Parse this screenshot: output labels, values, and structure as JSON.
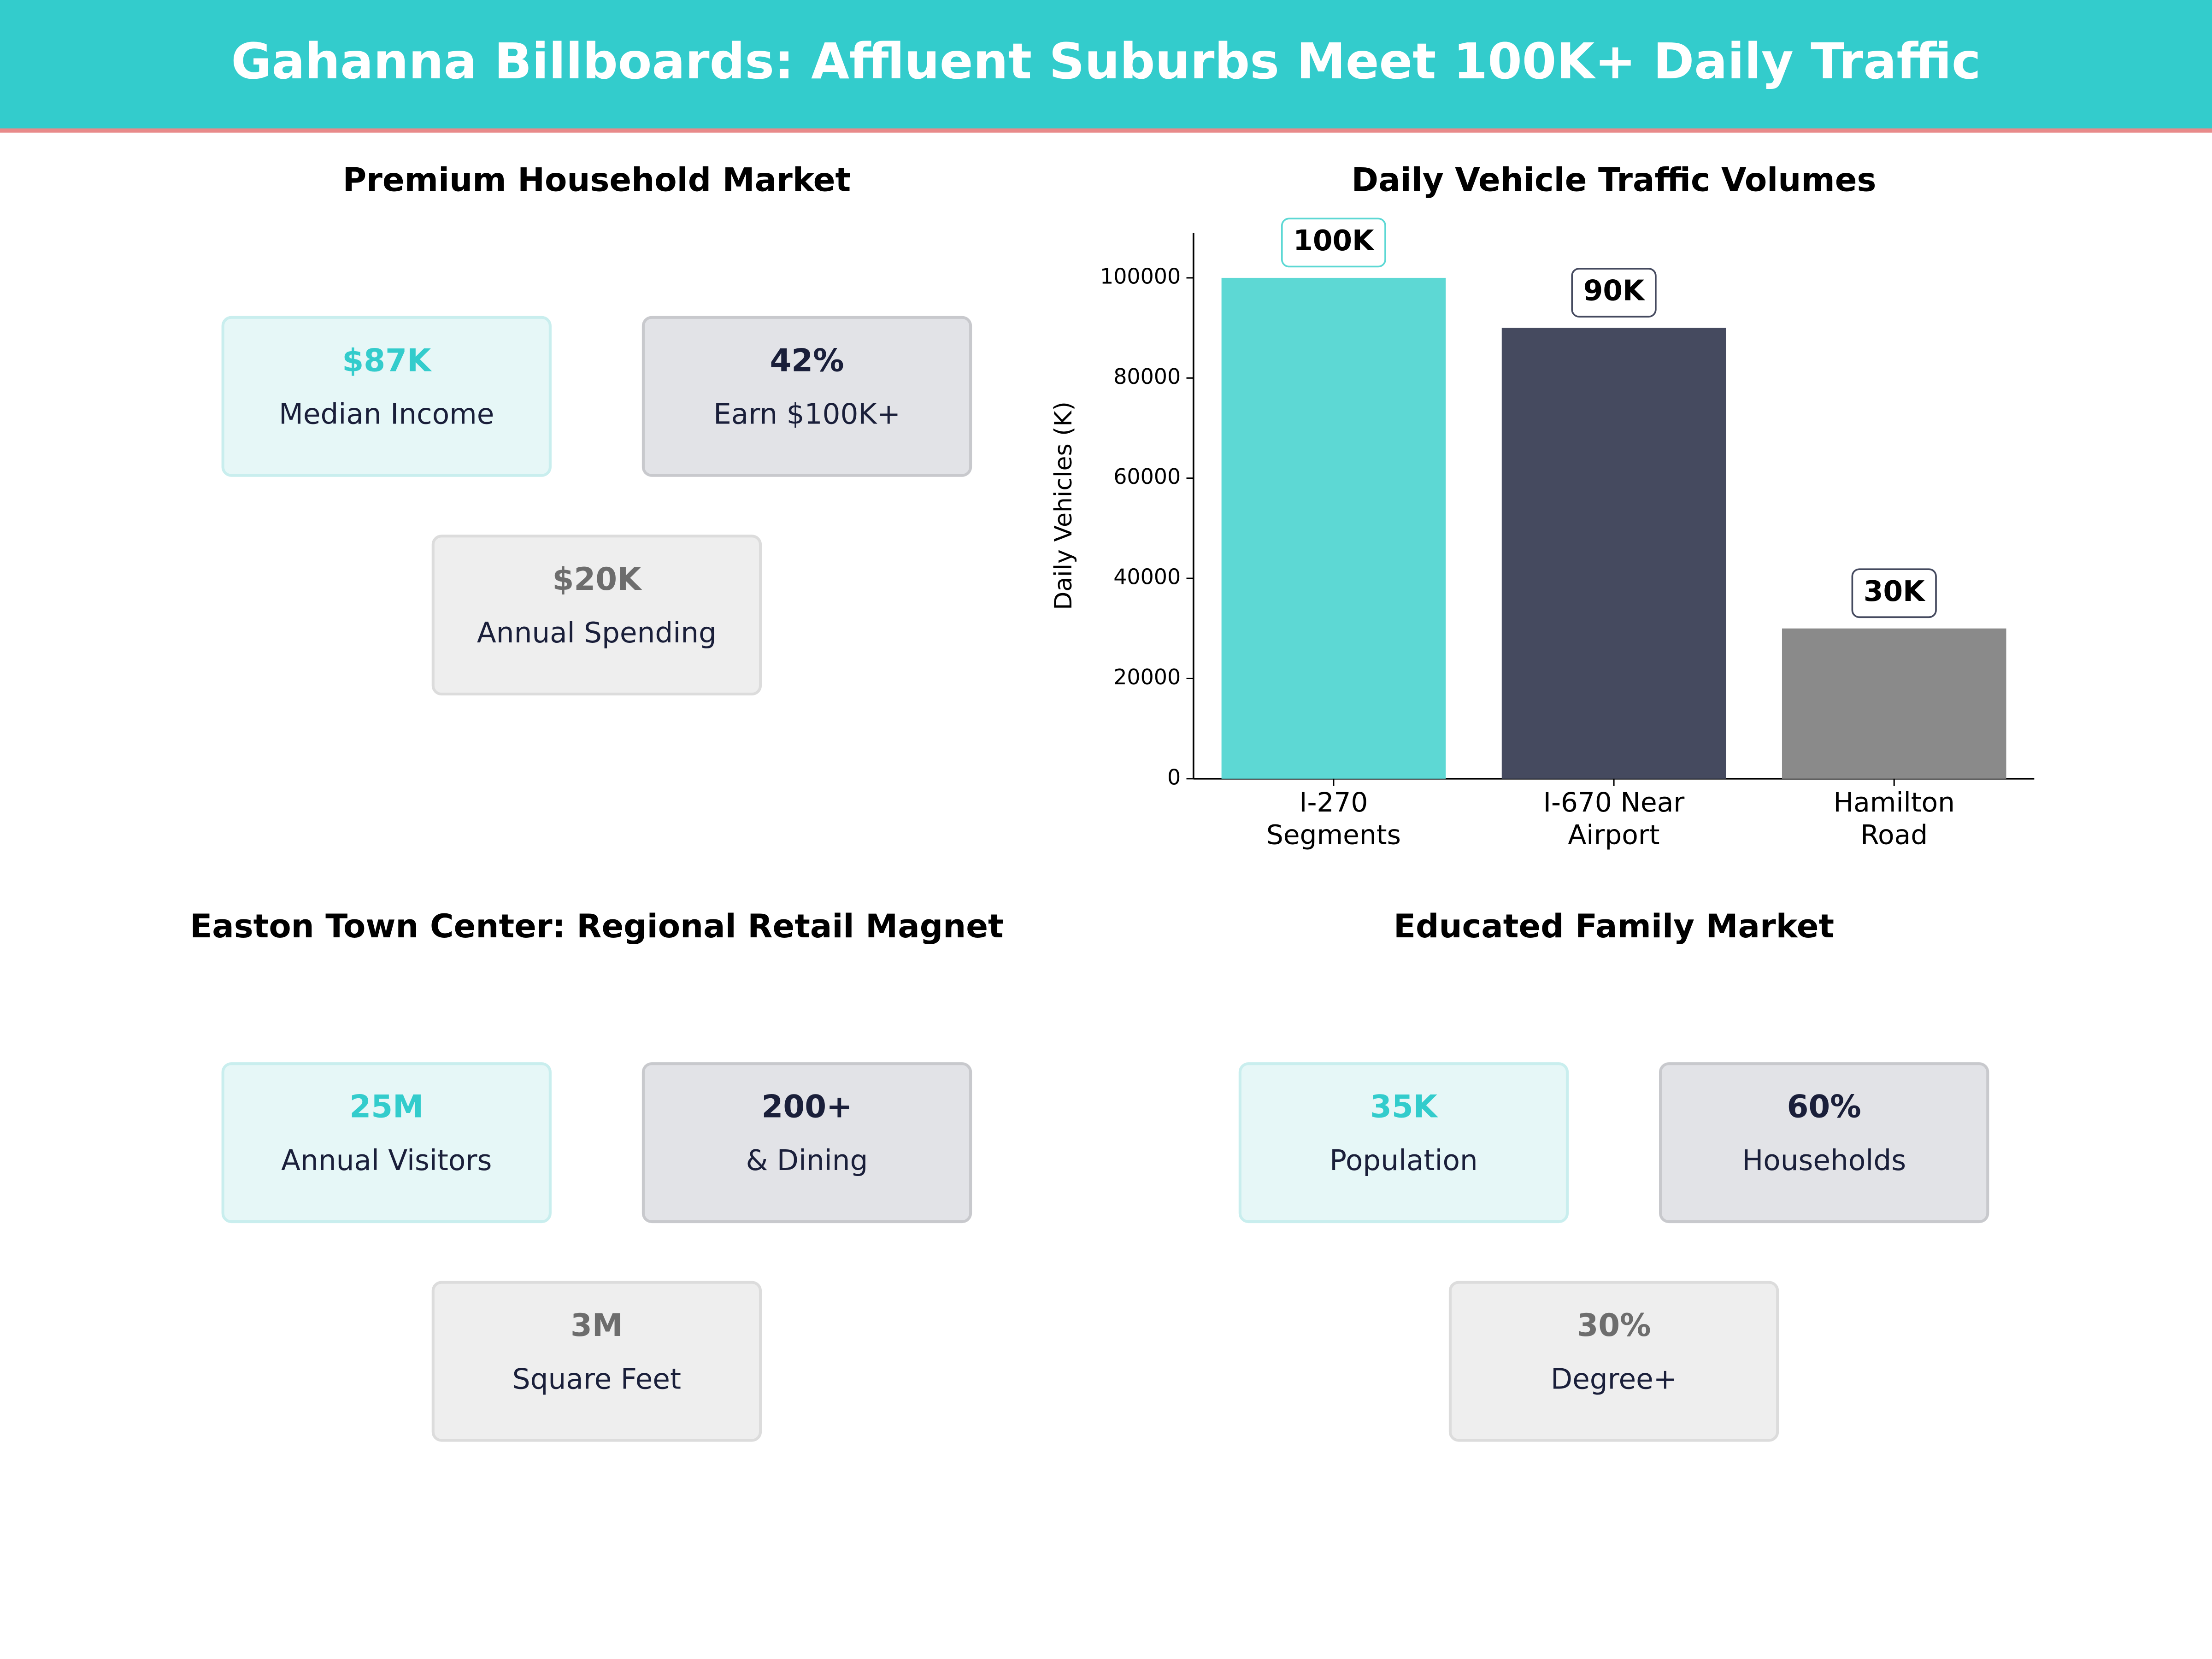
{
  "header": {
    "title": "Gahanna Billboards: Affluent Suburbs Meet 100K+ Daily Traffic"
  },
  "panels": [
    {
      "title": "Premium Household Market",
      "cards": [
        {
          "value": "$87K",
          "label": "Median Income"
        },
        {
          "value": "42%",
          "label": "Earn $100K+"
        },
        {
          "value": "$20K",
          "label": "Annual Spending"
        }
      ]
    },
    {
      "title": "Easton Town Center: Regional Retail Magnet",
      "cards": [
        {
          "value": "25M",
          "label": "Annual Visitors"
        },
        {
          "value": "200+",
          "label": "& Dining"
        },
        {
          "value": "3M",
          "label": "Square Feet"
        }
      ]
    },
    {
      "title": "Educated Family Market",
      "cards": [
        {
          "value": "35K",
          "label": "Population"
        },
        {
          "value": "60%",
          "label": "Households"
        },
        {
          "value": "30%",
          "label": "Degree+"
        }
      ]
    }
  ],
  "chart_data": {
    "type": "bar",
    "title": "Daily Vehicle Traffic Volumes",
    "y_label": "Daily Vehicles (K)",
    "categories": [
      "I-270 Segments",
      "I-670 Near Airport",
      "Hamilton Road"
    ],
    "values": [
      100000,
      90000,
      30000
    ],
    "value_labels": [
      "100K",
      "90K",
      "30K"
    ],
    "colors": [
      "#5dd8d4",
      "#454a5f",
      "#8a8a8a"
    ],
    "ylim": [
      0,
      109000
    ],
    "yticks": [
      0,
      20000,
      40000,
      60000,
      80000,
      100000
    ]
  }
}
